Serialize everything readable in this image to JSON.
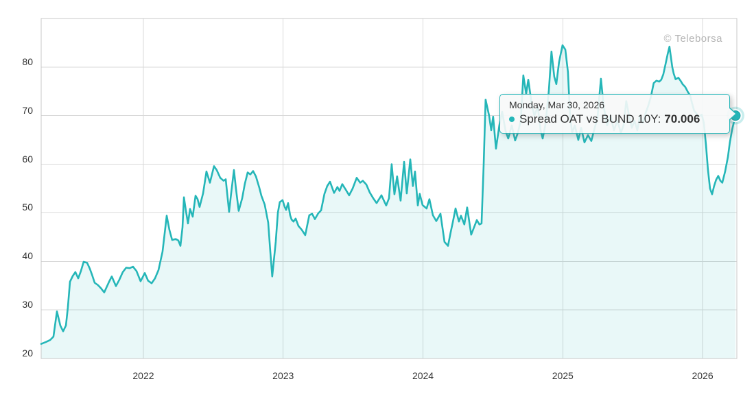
{
  "watermark": {
    "label": "© Teleborsa"
  },
  "tooltip": {
    "date": "Monday, Mar 30, 2026",
    "series_label": "Spread OAT vs BUND 10Y:",
    "value": "70.006"
  },
  "chart_data": {
    "type": "area",
    "title": "Spread OAT vs BUND 10Y",
    "xlabel": "",
    "ylabel": "",
    "grid": true,
    "legend_position": "none",
    "x_ticks": [
      2022,
      2023,
      2024,
      2025,
      2026
    ],
    "y_ticks": [
      20,
      30,
      40,
      50,
      60,
      70,
      80
    ],
    "xlim": [
      2021.269,
      2026.245
    ],
    "ylim": [
      20,
      90
    ],
    "last_point": {
      "date": "Monday, Mar 30, 2026",
      "value": 70.006
    },
    "colors": {
      "line": "#25b6b8",
      "fill": "rgba(37,182,184,0.10)",
      "grid": "#d9d9d9",
      "plot_border": "#c9c9c9",
      "tick_label": "#333333",
      "watermark": "#b5b5b5",
      "tooltip_bg": "rgba(247,248,248,0.9)",
      "tooltip_border": "#25b6b8",
      "marker": "#25b6b8",
      "marker_halo": "rgba(37,182,184,0.25)"
    },
    "series": [
      {
        "name": "Spread OAT vs BUND 10Y",
        "points": [
          [
            2021.269,
            23.0
          ],
          [
            2021.303,
            23.4
          ],
          [
            2021.333,
            23.8
          ],
          [
            2021.357,
            24.5
          ],
          [
            2021.382,
            29.7
          ],
          [
            2021.406,
            26.8
          ],
          [
            2021.426,
            25.6
          ],
          [
            2021.446,
            26.8
          ],
          [
            2021.46,
            30.5
          ],
          [
            2021.475,
            35.8
          ],
          [
            2021.495,
            37.0
          ],
          [
            2021.514,
            37.8
          ],
          [
            2021.534,
            36.5
          ],
          [
            2021.553,
            38.0
          ],
          [
            2021.573,
            39.9
          ],
          [
            2021.598,
            39.7
          ],
          [
            2021.617,
            38.5
          ],
          [
            2021.632,
            37.3
          ],
          [
            2021.652,
            35.6
          ],
          [
            2021.676,
            35.1
          ],
          [
            2021.696,
            34.5
          ],
          [
            2021.72,
            33.6
          ],
          [
            2021.755,
            35.8
          ],
          [
            2021.774,
            36.9
          ],
          [
            2021.804,
            34.9
          ],
          [
            2021.828,
            36.2
          ],
          [
            2021.853,
            37.8
          ],
          [
            2021.877,
            38.7
          ],
          [
            2021.902,
            38.6
          ],
          [
            2021.926,
            38.9
          ],
          [
            2021.951,
            38.0
          ],
          [
            2021.98,
            35.9
          ],
          [
            2022.01,
            37.6
          ],
          [
            2022.034,
            36.0
          ],
          [
            2022.059,
            35.5
          ],
          [
            2022.083,
            36.5
          ],
          [
            2022.108,
            38.2
          ],
          [
            2022.137,
            42.0
          ],
          [
            2022.167,
            49.4
          ],
          [
            2022.186,
            46.5
          ],
          [
            2022.206,
            44.4
          ],
          [
            2022.231,
            44.6
          ],
          [
            2022.25,
            44.3
          ],
          [
            2022.265,
            43.2
          ],
          [
            2022.28,
            47.0
          ],
          [
            2022.29,
            53.2
          ],
          [
            2022.304,
            50.5
          ],
          [
            2022.319,
            47.8
          ],
          [
            2022.334,
            50.8
          ],
          [
            2022.353,
            49.2
          ],
          [
            2022.373,
            53.5
          ],
          [
            2022.388,
            52.8
          ],
          [
            2022.402,
            51.2
          ],
          [
            2022.427,
            54.0
          ],
          [
            2022.451,
            58.5
          ],
          [
            2022.476,
            56.2
          ],
          [
            2022.505,
            59.6
          ],
          [
            2022.525,
            58.8
          ],
          [
            2022.55,
            57.2
          ],
          [
            2022.574,
            56.6
          ],
          [
            2022.589,
            56.9
          ],
          [
            2022.613,
            50.2
          ],
          [
            2022.628,
            54.0
          ],
          [
            2022.648,
            58.8
          ],
          [
            2022.662,
            55.0
          ],
          [
            2022.682,
            50.4
          ],
          [
            2022.707,
            53.0
          ],
          [
            2022.726,
            56.0
          ],
          [
            2022.746,
            58.3
          ],
          [
            2022.765,
            57.9
          ],
          [
            2022.785,
            58.6
          ],
          [
            2022.805,
            57.5
          ],
          [
            2022.829,
            55.2
          ],
          [
            2022.844,
            53.5
          ],
          [
            2022.868,
            51.7
          ],
          [
            2022.893,
            48.0
          ],
          [
            2022.908,
            42.0
          ],
          [
            2022.922,
            36.9
          ],
          [
            2022.947,
            44.0
          ],
          [
            2022.962,
            50.0
          ],
          [
            2022.976,
            52.2
          ],
          [
            2022.996,
            52.6
          ],
          [
            2023.011,
            51.2
          ],
          [
            2023.021,
            50.6
          ],
          [
            2023.035,
            52.0
          ],
          [
            2023.05,
            49.5
          ],
          [
            2023.06,
            48.6
          ],
          [
            2023.074,
            48.2
          ],
          [
            2023.089,
            48.8
          ],
          [
            2023.109,
            47.3
          ],
          [
            2023.133,
            46.5
          ],
          [
            2023.158,
            45.4
          ],
          [
            2023.187,
            49.5
          ],
          [
            2023.207,
            49.8
          ],
          [
            2023.227,
            48.7
          ],
          [
            2023.251,
            49.9
          ],
          [
            2023.271,
            50.5
          ],
          [
            2023.295,
            53.9
          ],
          [
            2023.315,
            55.5
          ],
          [
            2023.335,
            56.4
          ],
          [
            2023.364,
            54.1
          ],
          [
            2023.388,
            55.3
          ],
          [
            2023.403,
            54.5
          ],
          [
            2023.423,
            55.9
          ],
          [
            2023.447,
            54.8
          ],
          [
            2023.472,
            53.6
          ],
          [
            2023.497,
            55.0
          ],
          [
            2023.526,
            57.2
          ],
          [
            2023.551,
            56.2
          ],
          [
            2023.57,
            56.6
          ],
          [
            2023.595,
            55.8
          ],
          [
            2023.619,
            54.2
          ],
          [
            2023.644,
            53.0
          ],
          [
            2023.668,
            52.0
          ],
          [
            2023.703,
            53.6
          ],
          [
            2023.737,
            51.5
          ],
          [
            2023.757,
            53.0
          ],
          [
            2023.776,
            60.0
          ],
          [
            2023.796,
            53.8
          ],
          [
            2023.815,
            57.5
          ],
          [
            2023.84,
            52.5
          ],
          [
            2023.865,
            60.5
          ],
          [
            2023.884,
            54.0
          ],
          [
            2023.909,
            61.0
          ],
          [
            2023.928,
            55.5
          ],
          [
            2023.943,
            58.5
          ],
          [
            2023.963,
            51.5
          ],
          [
            2023.977,
            53.9
          ],
          [
            2023.997,
            51.6
          ],
          [
            2024.026,
            50.9
          ],
          [
            2024.046,
            52.8
          ],
          [
            2024.071,
            49.5
          ],
          [
            2024.095,
            48.3
          ],
          [
            2024.125,
            49.8
          ],
          [
            2024.154,
            44.0
          ],
          [
            2024.179,
            43.2
          ],
          [
            2024.198,
            46.0
          ],
          [
            2024.213,
            48.0
          ],
          [
            2024.233,
            50.9
          ],
          [
            2024.257,
            48.2
          ],
          [
            2024.272,
            49.4
          ],
          [
            2024.296,
            47.6
          ],
          [
            2024.316,
            51.1
          ],
          [
            2024.345,
            45.5
          ],
          [
            2024.365,
            47.0
          ],
          [
            2024.385,
            48.5
          ],
          [
            2024.404,
            47.6
          ],
          [
            2024.419,
            47.8
          ],
          [
            2024.434,
            60.0
          ],
          [
            2024.448,
            73.3
          ],
          [
            2024.473,
            70.0
          ],
          [
            2024.488,
            67.0
          ],
          [
            2024.502,
            69.8
          ],
          [
            2024.522,
            63.2
          ],
          [
            2024.546,
            68.0
          ],
          [
            2024.566,
            70.8
          ],
          [
            2024.591,
            66.8
          ],
          [
            2024.61,
            65.3
          ],
          [
            2024.635,
            68.0
          ],
          [
            2024.659,
            64.9
          ],
          [
            2024.679,
            66.5
          ],
          [
            2024.699,
            69.0
          ],
          [
            2024.718,
            78.3
          ],
          [
            2024.738,
            74.5
          ],
          [
            2024.753,
            77.4
          ],
          [
            2024.777,
            72.5
          ],
          [
            2024.797,
            70.0
          ],
          [
            2024.821,
            71.9
          ],
          [
            2024.841,
            67.0
          ],
          [
            2024.856,
            65.3
          ],
          [
            2024.875,
            68.0
          ],
          [
            2024.9,
            75.0
          ],
          [
            2024.919,
            83.2
          ],
          [
            2024.939,
            78.0
          ],
          [
            2024.954,
            76.5
          ],
          [
            2024.973,
            81.0
          ],
          [
            2024.998,
            84.5
          ],
          [
            2025.018,
            83.6
          ],
          [
            2025.037,
            79.0
          ],
          [
            2025.052,
            70.0
          ],
          [
            2025.067,
            66.5
          ],
          [
            2025.086,
            68.0
          ],
          [
            2025.111,
            65.0
          ],
          [
            2025.131,
            67.5
          ],
          [
            2025.155,
            64.5
          ],
          [
            2025.18,
            66.0
          ],
          [
            2025.204,
            64.8
          ],
          [
            2025.224,
            67.0
          ],
          [
            2025.248,
            69.5
          ],
          [
            2025.273,
            77.6
          ],
          [
            2025.292,
            72.0
          ],
          [
            2025.317,
            68.0
          ],
          [
            2025.341,
            70.0
          ],
          [
            2025.366,
            67.0
          ],
          [
            2025.39,
            69.0
          ],
          [
            2025.415,
            66.5
          ],
          [
            2025.435,
            68.0
          ],
          [
            2025.454,
            73.0
          ],
          [
            2025.474,
            70.0
          ],
          [
            2025.494,
            67.5
          ],
          [
            2025.513,
            69.0
          ],
          [
            2025.533,
            67.0
          ],
          [
            2025.552,
            70.0
          ],
          [
            2025.572,
            68.5
          ],
          [
            2025.592,
            70.5
          ],
          [
            2025.611,
            72.0
          ],
          [
            2025.631,
            74.0
          ],
          [
            2025.65,
            76.7
          ],
          [
            2025.67,
            77.2
          ],
          [
            2025.69,
            77.0
          ],
          [
            2025.704,
            77.4
          ],
          [
            2025.719,
            78.5
          ],
          [
            2025.734,
            80.5
          ],
          [
            2025.749,
            82.5
          ],
          [
            2025.763,
            84.2
          ],
          [
            2025.783,
            80.0
          ],
          [
            2025.793,
            78.7
          ],
          [
            2025.807,
            77.5
          ],
          [
            2025.827,
            77.8
          ],
          [
            2025.842,
            77.2
          ],
          [
            2025.857,
            76.5
          ],
          [
            2025.876,
            75.9
          ],
          [
            2025.896,
            74.8
          ],
          [
            2025.911,
            74.2
          ],
          [
            2025.925,
            72.5
          ],
          [
            2025.94,
            71.0
          ],
          [
            2025.955,
            70.5
          ],
          [
            2025.969,
            69.8
          ],
          [
            2025.994,
            70.2
          ],
          [
            2026.009,
            68.5
          ],
          [
            2026.024,
            64.0
          ],
          [
            2026.038,
            59.0
          ],
          [
            2026.053,
            55.0
          ],
          [
            2026.068,
            53.8
          ],
          [
            2026.082,
            55.5
          ],
          [
            2026.097,
            56.8
          ],
          [
            2026.112,
            57.6
          ],
          [
            2026.127,
            56.6
          ],
          [
            2026.141,
            56.2
          ],
          [
            2026.161,
            58.5
          ],
          [
            2026.181,
            61.5
          ],
          [
            2026.195,
            64.5
          ],
          [
            2026.21,
            67.0
          ],
          [
            2026.225,
            68.8
          ],
          [
            2026.235,
            70.006
          ]
        ]
      }
    ]
  }
}
